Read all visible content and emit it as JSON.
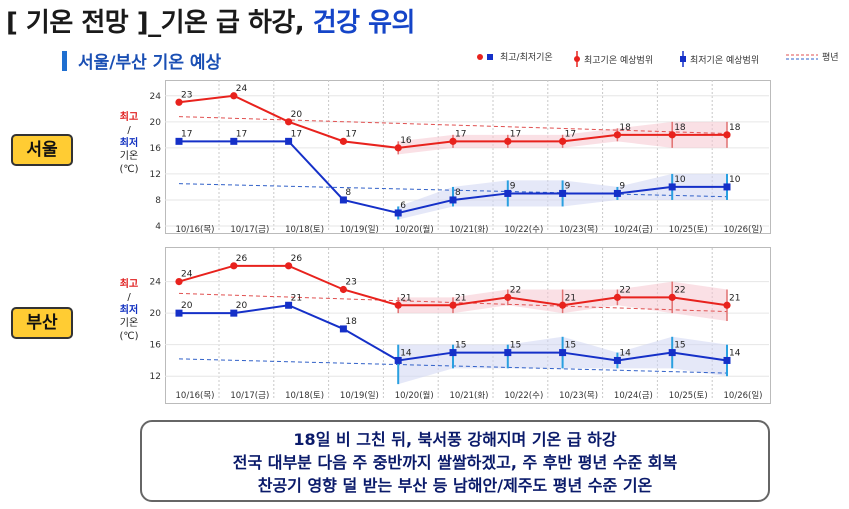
{
  "page": {
    "title_prefix": "[ 기온 전망 ]_기온 급 하강, ",
    "title_highlight": "건강 유의",
    "subtitle": "서울/부산 기온 예상"
  },
  "legend": {
    "item1": "최고/최저기온",
    "item2": "최고기온 예상범위",
    "item3": "최저기온 예상범위",
    "item4": "평년"
  },
  "colors": {
    "max": "#e8221d",
    "min": "#1530c8",
    "normal_max": "#e05050",
    "normal_min": "#3060c8",
    "band_max": "#f5c6d0",
    "band_min": "#cfd6f2"
  },
  "ylabel": {
    "max": "최고",
    "slash": "/",
    "min": "최저",
    "temp": "기온",
    "unit": "(℃)"
  },
  "chart_data": [
    {
      "type": "line",
      "city": "서울",
      "x": [
        "10/16(목)",
        "10/17(금)",
        "10/18(토)",
        "10/19(일)",
        "10/20(월)",
        "10/21(화)",
        "10/22(수)",
        "10/23(목)",
        "10/24(금)",
        "10/25(토)",
        "10/26(일)"
      ],
      "yticks": [
        4,
        8,
        12,
        16,
        20,
        24
      ],
      "ylim": [
        4,
        25.5
      ],
      "series": [
        {
          "name": "최고기온",
          "values": [
            23,
            24,
            20,
            17,
            16,
            17,
            17,
            17,
            18,
            18,
            18
          ]
        },
        {
          "name": "최저기온",
          "values": [
            17,
            17,
            17,
            8,
            6,
            8,
            9,
            9,
            9,
            10,
            10
          ]
        }
      ],
      "max_range": [
        null,
        null,
        null,
        null,
        [
          15,
          17
        ],
        [
          16,
          18
        ],
        [
          16,
          18
        ],
        [
          16,
          18
        ],
        [
          17,
          19
        ],
        [
          16,
          20
        ],
        [
          16,
          20
        ]
      ],
      "min_range": [
        null,
        null,
        null,
        null,
        [
          5,
          7
        ],
        [
          7,
          10
        ],
        [
          7,
          11
        ],
        [
          7,
          11
        ],
        [
          8,
          10
        ],
        [
          8,
          12
        ],
        [
          8,
          12
        ]
      ],
      "normal_max": [
        20.8,
        18.2
      ],
      "normal_min": [
        10.5,
        8.5
      ]
    },
    {
      "type": "line",
      "city": "부산",
      "x": [
        "10/16(목)",
        "10/17(금)",
        "10/18(토)",
        "10/19(일)",
        "10/20(월)",
        "10/21(화)",
        "10/22(수)",
        "10/23(목)",
        "10/24(금)",
        "10/25(토)",
        "10/26(일)"
      ],
      "yticks": [
        12,
        16,
        20,
        24
      ],
      "ylim": [
        10,
        27.5
      ],
      "series": [
        {
          "name": "최고기온",
          "values": [
            24,
            26,
            26,
            23,
            21,
            21,
            22,
            21,
            22,
            22,
            21
          ]
        },
        {
          "name": "최저기온",
          "values": [
            20,
            20,
            21,
            18,
            14,
            15,
            15,
            15,
            14,
            15,
            14
          ]
        }
      ],
      "max_range": [
        null,
        null,
        null,
        null,
        [
          20,
          22
        ],
        [
          20,
          22
        ],
        [
          21,
          23
        ],
        [
          20,
          23
        ],
        [
          21,
          23
        ],
        [
          20,
          24
        ],
        [
          19,
          23
        ]
      ],
      "min_range": [
        null,
        null,
        null,
        null,
        [
          11,
          16
        ],
        [
          13,
          16
        ],
        [
          13,
          16
        ],
        [
          13,
          17
        ],
        [
          13,
          15
        ],
        [
          13,
          17
        ],
        [
          12,
          16
        ]
      ],
      "normal_max": [
        22.5,
        20.2
      ],
      "normal_min": [
        14.2,
        12.4
      ]
    }
  ],
  "summary": {
    "line1": "18일 비 그친 뒤, 북서풍 강해지며 기온 급 하강",
    "line2": "전국 대부분 다음 주 중반까지 쌀쌀하겠고, 주 후반 평년 수준 회복",
    "line3": "찬공기 영향 덜 받는 부산 등 남해안/제주도 평년 수준 기온"
  }
}
